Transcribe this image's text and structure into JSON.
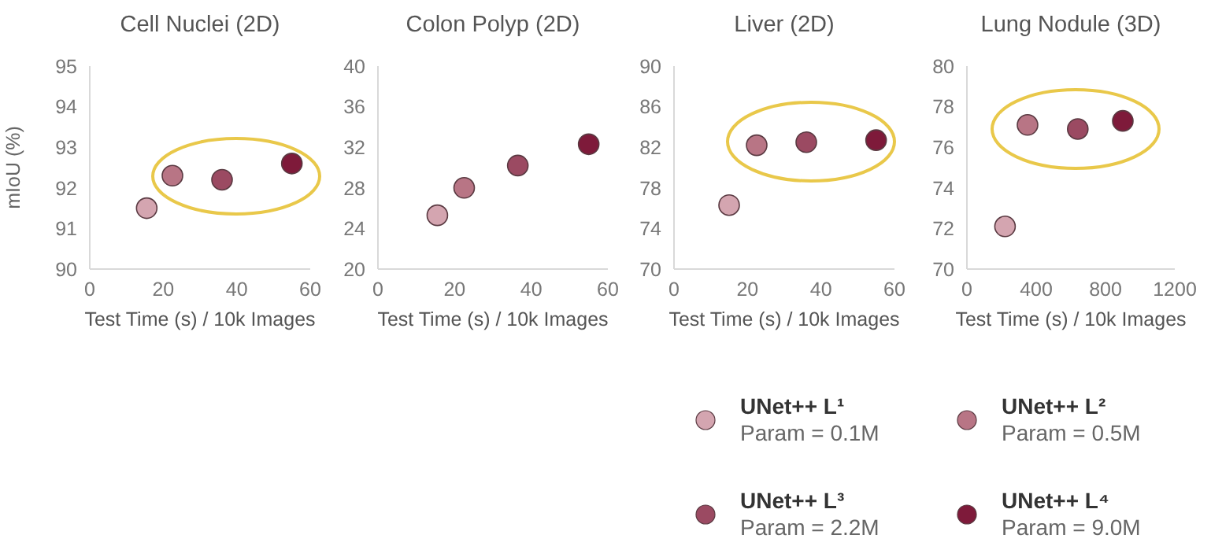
{
  "chart_data": [
    {
      "type": "scatter",
      "title": "Cell Nuclei (2D)",
      "xlabel": "Test Time (s) / 10k Images",
      "ylabel": "mIoU (%)",
      "xlim": [
        0,
        60
      ],
      "xticks": [
        0,
        20,
        40,
        60
      ],
      "ylim": [
        90,
        95
      ],
      "yticks": [
        90,
        91,
        92,
        93,
        94,
        95
      ],
      "marker": "circle",
      "grid": false,
      "series": [
        {
          "color": "#d4a5b0",
          "x": [
            15.5
          ],
          "values": [
            91.5
          ]
        },
        {
          "color": "#b87585",
          "x": [
            22.5
          ],
          "values": [
            92.3
          ]
        },
        {
          "color": "#9b4a62",
          "x": [
            36
          ],
          "values": [
            92.2
          ]
        },
        {
          "color": "#7e1a3a",
          "x": [
            55
          ],
          "values": [
            92.6
          ]
        }
      ]
    },
    {
      "type": "scatter",
      "title": "Colon Polyp (2D)",
      "xlabel": "Test Time (s) / 10k Images",
      "xlim": [
        0,
        60
      ],
      "xticks": [
        0,
        20,
        40,
        60
      ],
      "ylim": [
        20,
        40
      ],
      "yticks": [
        20,
        24,
        28,
        32,
        36,
        40
      ],
      "marker": "circle",
      "grid": false,
      "series": [
        {
          "color": "#d4a5b0",
          "x": [
            15.5
          ],
          "values": [
            25.3
          ]
        },
        {
          "color": "#b87585",
          "x": [
            22.5
          ],
          "values": [
            28
          ]
        },
        {
          "color": "#9b4a62",
          "x": [
            36.5
          ],
          "values": [
            30.2
          ]
        },
        {
          "color": "#7e1a3a",
          "x": [
            55
          ],
          "values": [
            32.3
          ]
        }
      ]
    },
    {
      "type": "scatter",
      "title": "Liver (2D)",
      "xlabel": "Test Time (s) / 10k Images",
      "xlim": [
        0,
        60
      ],
      "xticks": [
        0,
        20,
        40,
        60
      ],
      "ylim": [
        70,
        90
      ],
      "yticks": [
        70,
        74,
        78,
        82,
        86,
        90
      ],
      "marker": "circle",
      "grid": false,
      "series": [
        {
          "color": "#d4a5b0",
          "x": [
            15
          ],
          "values": [
            76.3
          ]
        },
        {
          "color": "#b87585",
          "x": [
            22.5
          ],
          "values": [
            82.2
          ]
        },
        {
          "color": "#9b4a62",
          "x": [
            36
          ],
          "values": [
            82.5
          ]
        },
        {
          "color": "#7e1a3a",
          "x": [
            55
          ],
          "values": [
            82.7
          ]
        }
      ]
    },
    {
      "type": "scatter",
      "title": "Lung Nodule (3D)",
      "xlabel": "Test Time (s) / 10k Images",
      "xlim": [
        0,
        1200
      ],
      "xticks": [
        0,
        400,
        800,
        1200
      ],
      "ylim": [
        70,
        80
      ],
      "yticks": [
        70,
        72,
        74,
        76,
        78,
        80
      ],
      "marker": "circle",
      "grid": false,
      "legend": "bottom",
      "series": [
        {
          "name": "UNet++ L¹\nParam = 0.1M",
          "color": "#d4a5b0",
          "x": [
            220
          ],
          "values": [
            72.1
          ]
        },
        {
          "name": "UNet++ L²\nParam = 0.5M",
          "color": "#b87585",
          "x": [
            350
          ],
          "values": [
            77.1
          ]
        },
        {
          "name": "UNet++ L³\nParam = 2.2M",
          "color": "#9b4a62",
          "x": [
            640
          ],
          "values": [
            76.9
          ]
        },
        {
          "name": "UNet++ L⁴\nParam = 9.0M",
          "color": "#7e1a3a",
          "x": [
            900
          ],
          "values": [
            77.3
          ]
        }
      ]
    }
  ]
}
